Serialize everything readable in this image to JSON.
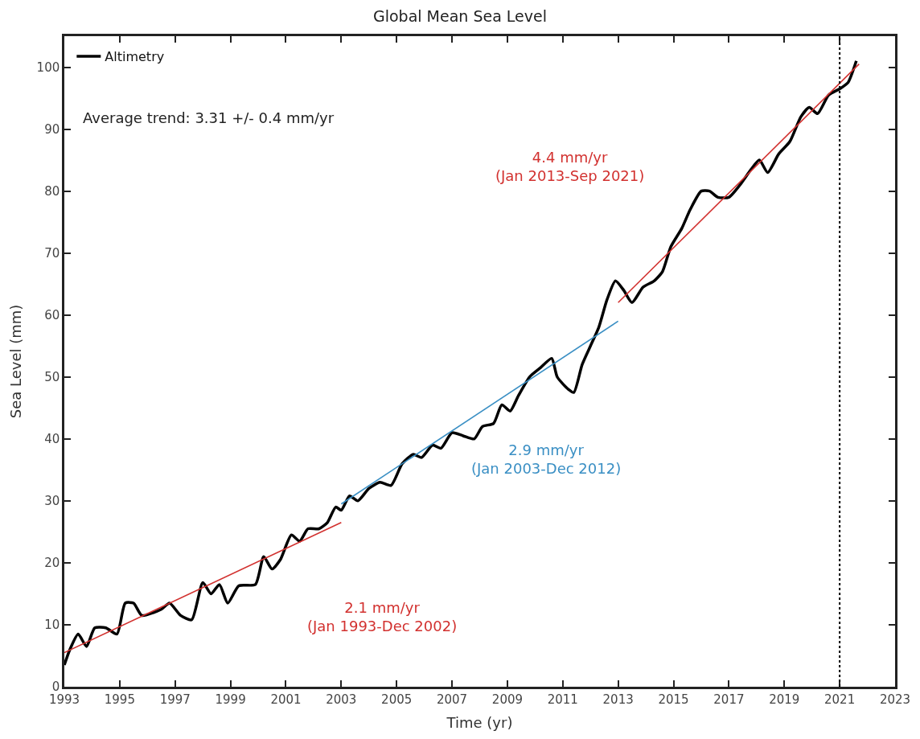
{
  "chart_data": {
    "type": "line",
    "title": "Global Mean Sea Level",
    "xlabel": "Time (yr)",
    "ylabel": "Sea Level (mm)",
    "xlim": [
      1993,
      2023
    ],
    "xticks": [
      1993,
      1995,
      1997,
      1999,
      2001,
      2003,
      2005,
      2007,
      2009,
      2011,
      2013,
      2015,
      2017,
      2019,
      2021,
      2023
    ],
    "ylim": [
      0,
      105
    ],
    "yticks": [
      0,
      10,
      20,
      30,
      40,
      50,
      60,
      70,
      80,
      90,
      100
    ],
    "legend": "top left",
    "line_style": "solid",
    "marker": "none",
    "series": [
      {
        "name": "Altimetry",
        "color": "#000000",
        "x": [
          1993.0,
          1993.2,
          1993.5,
          1993.8,
          1994.1,
          1994.5,
          1994.9,
          1995.2,
          1995.5,
          1995.8,
          1996.5,
          1996.8,
          1997.2,
          1997.6,
          1998.0,
          1998.3,
          1998.6,
          1998.9,
          1999.3,
          1999.9,
          2000.2,
          2000.5,
          2000.8,
          2001.2,
          2001.5,
          2001.8,
          2002.2,
          2002.5,
          2002.8,
          2003.0,
          2003.3,
          2003.6,
          2004.0,
          2004.4,
          2004.8,
          2005.2,
          2005.6,
          2005.9,
          2006.3,
          2006.6,
          2007.0,
          2007.4,
          2007.8,
          2008.1,
          2008.5,
          2008.8,
          2009.1,
          2009.4,
          2009.8,
          2010.2,
          2010.6,
          2010.8,
          2011.2,
          2011.4,
          2011.7,
          2012.0,
          2012.3,
          2012.6,
          2012.9,
          2013.2,
          2013.5,
          2013.9,
          2014.3,
          2014.6,
          2014.9,
          2015.3,
          2015.6,
          2016.0,
          2016.3,
          2016.6,
          2017.0,
          2017.4,
          2017.8,
          2018.1,
          2018.4,
          2018.8,
          2019.2,
          2019.6,
          2019.9,
          2020.2,
          2020.6,
          2021.0,
          2021.3,
          2021.6
        ],
        "values": [
          3.5,
          6,
          8.5,
          6.5,
          9.5,
          9.5,
          8.5,
          13.5,
          13.5,
          11.5,
          12.5,
          13.5,
          11.5,
          10.8,
          16.8,
          15,
          16.5,
          13.5,
          16.3,
          16.5,
          21,
          19,
          20.5,
          24.5,
          23.5,
          25.5,
          25.5,
          26.5,
          29,
          28.5,
          30.8,
          30,
          32,
          33,
          32.5,
          36,
          37.5,
          37,
          39,
          38.5,
          41,
          40.5,
          40,
          42,
          42.5,
          45.5,
          44.5,
          47,
          50,
          51.5,
          53,
          50,
          48,
          47.5,
          52,
          55,
          58,
          62.5,
          65.5,
          64,
          62,
          64.5,
          65.5,
          67,
          71,
          74,
          77,
          80,
          80,
          79,
          79,
          81,
          83.5,
          85,
          83,
          86,
          88,
          92,
          93.5,
          92.5,
          95.5,
          96.5,
          97.5,
          101
        ]
      },
      {
        "color": "#d2312f",
        "x": [
          1993,
          2003
        ],
        "values": [
          5.5,
          26.5
        ]
      },
      {
        "color": "#3a8fc4",
        "x": [
          2003,
          2013
        ],
        "values": [
          29.5,
          59
        ]
      },
      {
        "color": "#d2312f",
        "x": [
          2013,
          2021.7
        ],
        "values": [
          62,
          100.5
        ]
      }
    ],
    "ref_lines": [
      {
        "axis": "x",
        "value": 2021,
        "color": "#000000",
        "line_style": "dotted"
      }
    ],
    "annotations": [
      "Average trend: 3.31 +/- 0.4 mm/yr",
      "2.1 mm/yr\n(Jan 1993-Dec 2002)",
      "2.9 mm/yr\n(Jan 2003-Dec 2012)",
      "4.4 mm/yr\n(Jan 2013-Sep 2021)"
    ]
  }
}
